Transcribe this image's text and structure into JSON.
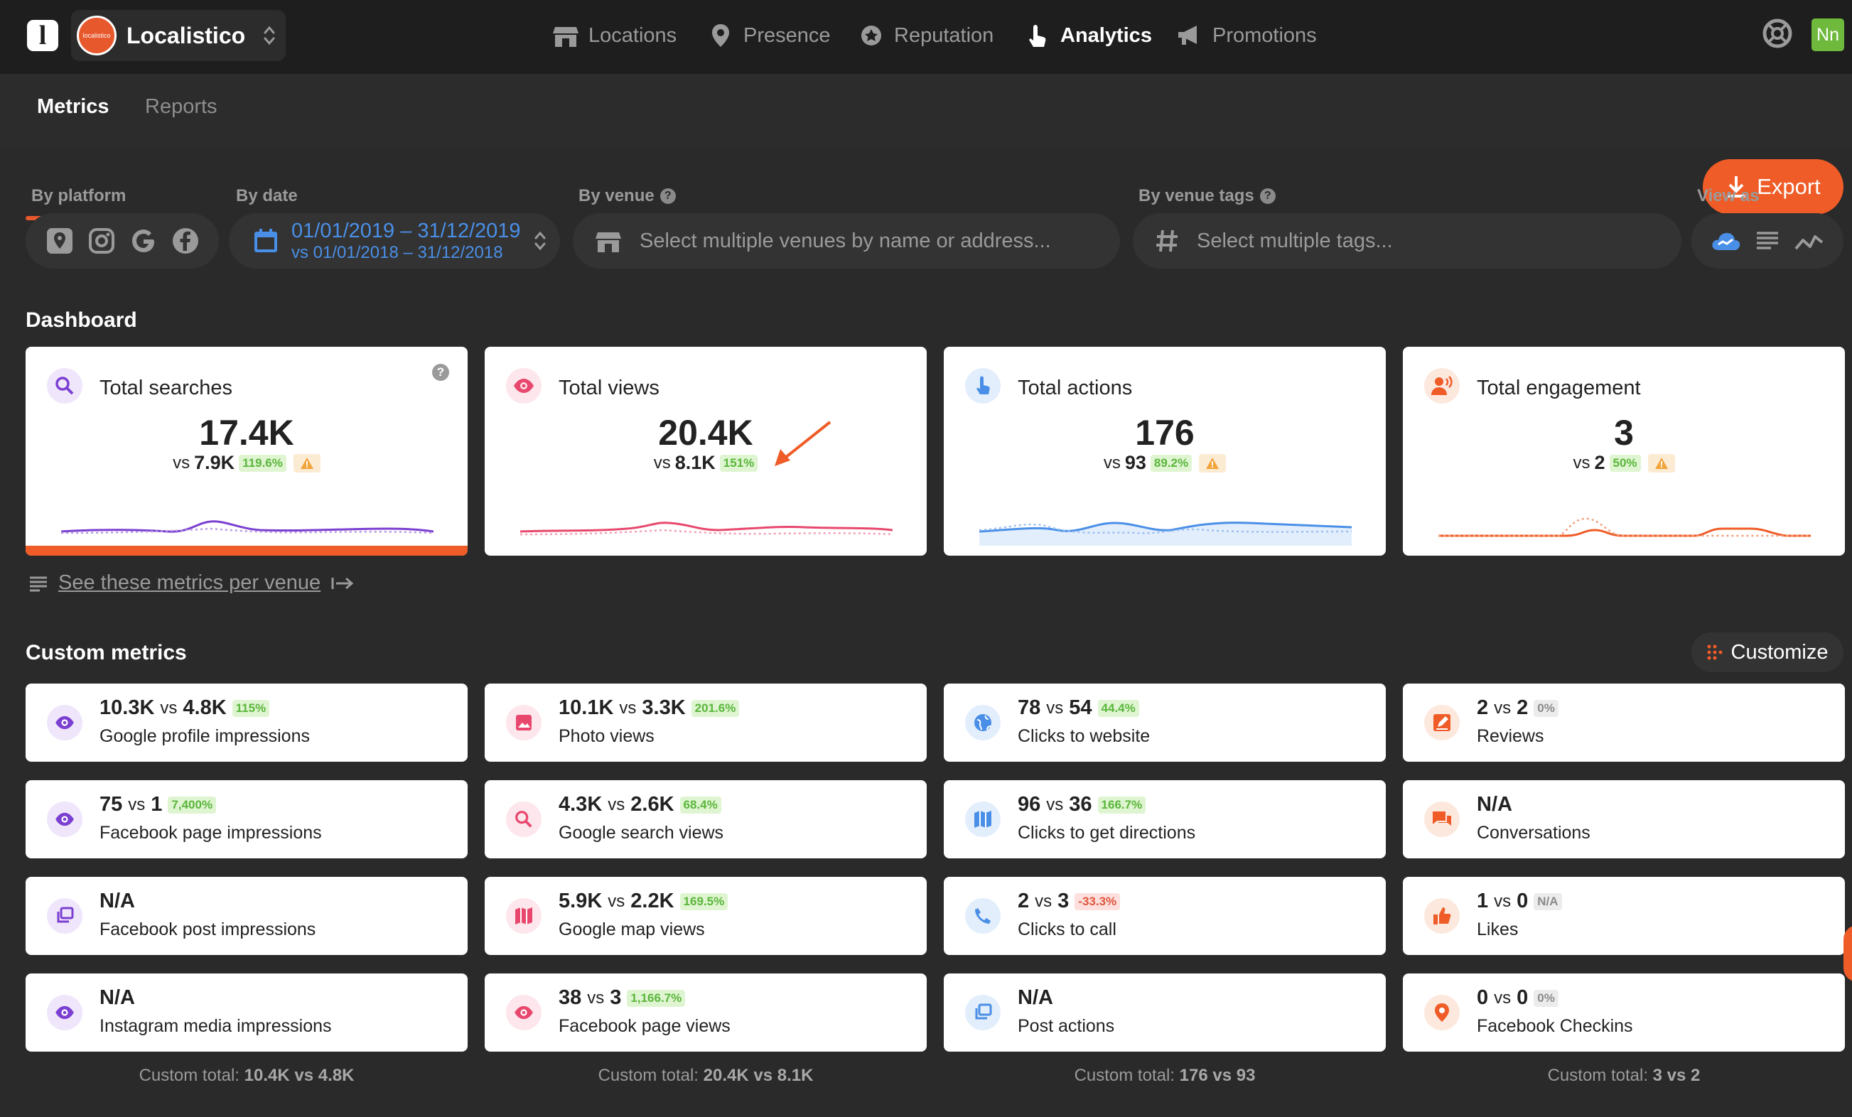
{
  "app": {
    "org_name": "Localistico",
    "org_avatar_text": "localistico",
    "user_initials": "Nn"
  },
  "nav": [
    {
      "label": "Locations",
      "icon": "storefront-icon"
    },
    {
      "label": "Presence",
      "icon": "location-pin-icon"
    },
    {
      "label": "Reputation",
      "icon": "award-badge-icon"
    },
    {
      "label": "Analytics",
      "icon": "touch-hand-icon"
    },
    {
      "label": "Promotions",
      "icon": "megaphone-icon"
    }
  ],
  "tabs": {
    "metrics": "Metrics",
    "reports": "Reports"
  },
  "export_label": "Export",
  "filters": {
    "platform_label": "By platform",
    "date_label": "By date",
    "date_range": "01/01/2019 – 31/12/2019",
    "date_compare": "vs 01/01/2018 – 31/12/2018",
    "venue_label": "By venue",
    "venue_placeholder": "Select multiple venues by name or address...",
    "tags_label": "By venue tags",
    "tags_placeholder": "Select multiple tags...",
    "view_label": "View as"
  },
  "dashboard": {
    "title": "Dashboard",
    "cards": [
      {
        "title": "Total searches",
        "value": "17.4K",
        "compare": "7.9K",
        "change": "119.6%",
        "color": "#7b3fd1",
        "icon_bg": "#efe6fb"
      },
      {
        "title": "Total views",
        "value": "20.4K",
        "compare": "8.1K",
        "change": "151%",
        "color": "#e8486d",
        "icon_bg": "#fde6ec"
      },
      {
        "title": "Total actions",
        "value": "176",
        "compare": "93",
        "change": "89.2%",
        "color": "#4a8fe7",
        "icon_bg": "#e3eefc"
      },
      {
        "title": "Total engagement",
        "value": "3",
        "compare": "2",
        "change": "50%",
        "color": "#ef5c27",
        "icon_bg": "#fde8de"
      }
    ],
    "per_venue_link": "See these metrics per venue",
    "vs_label": "vs"
  },
  "custom": {
    "title": "Custom metrics",
    "customize_label": "Customize",
    "vs_label": "vs",
    "columns": [
      {
        "items": [
          {
            "value": "10.3K",
            "compare": "4.8K",
            "change": "115%",
            "change_type": "green",
            "name": "Google profile impressions",
            "icon": "eye-icon"
          },
          {
            "value": "75",
            "compare": "1",
            "change": "7,400%",
            "change_type": "green",
            "name": "Facebook page impressions",
            "icon": "eye-icon"
          },
          {
            "value": "N/A",
            "compare": "",
            "change": "",
            "change_type": "none",
            "name": "Facebook post impressions",
            "icon": "gallery-stack-icon"
          },
          {
            "value": "N/A",
            "compare": "",
            "change": "",
            "change_type": "none",
            "name": "Instagram media impressions",
            "icon": "eye-icon"
          }
        ],
        "total_label": "Custom total:",
        "total": "10.4K vs 4.8K"
      },
      {
        "items": [
          {
            "value": "10.1K",
            "compare": "3.3K",
            "change": "201.6%",
            "change_type": "green",
            "name": "Photo views",
            "icon": "image-icon"
          },
          {
            "value": "4.3K",
            "compare": "2.6K",
            "change": "68.4%",
            "change_type": "green",
            "name": "Google search views",
            "icon": "search-icon"
          },
          {
            "value": "5.9K",
            "compare": "2.2K",
            "change": "169.5%",
            "change_type": "green",
            "name": "Google map views",
            "icon": "map-icon"
          },
          {
            "value": "38",
            "compare": "3",
            "change": "1,166.7%",
            "change_type": "green",
            "name": "Facebook page views",
            "icon": "eye-icon"
          }
        ],
        "total_label": "Custom total:",
        "total": "20.4K vs 8.1K"
      },
      {
        "items": [
          {
            "value": "78",
            "compare": "54",
            "change": "44.4%",
            "change_type": "green",
            "name": "Clicks to website",
            "icon": "globe-icon"
          },
          {
            "value": "96",
            "compare": "36",
            "change": "166.7%",
            "change_type": "green",
            "name": "Clicks to get directions",
            "icon": "map-icon"
          },
          {
            "value": "2",
            "compare": "3",
            "change": "-33.3%",
            "change_type": "red",
            "name": "Clicks to call",
            "icon": "phone-icon"
          },
          {
            "value": "N/A",
            "compare": "",
            "change": "",
            "change_type": "none",
            "name": "Post actions",
            "icon": "gallery-stack-icon"
          }
        ],
        "total_label": "Custom total:",
        "total": "176 vs 93"
      },
      {
        "items": [
          {
            "value": "2",
            "compare": "2",
            "change": "0%",
            "change_type": "grey",
            "name": "Reviews",
            "icon": "review-edit-icon"
          },
          {
            "value": "N/A",
            "compare": "",
            "change": "",
            "change_type": "none",
            "name": "Conversations",
            "icon": "chat-bubbles-icon"
          },
          {
            "value": "1",
            "compare": "0",
            "change": "N/A",
            "change_type": "grey",
            "name": "Likes",
            "icon": "thumbs-up-icon"
          },
          {
            "value": "0",
            "compare": "0",
            "change": "0%",
            "change_type": "grey",
            "name": "Facebook Checkins",
            "icon": "location-pin-icon"
          }
        ],
        "total_label": "Custom total:",
        "total": "3 vs 2"
      }
    ]
  }
}
